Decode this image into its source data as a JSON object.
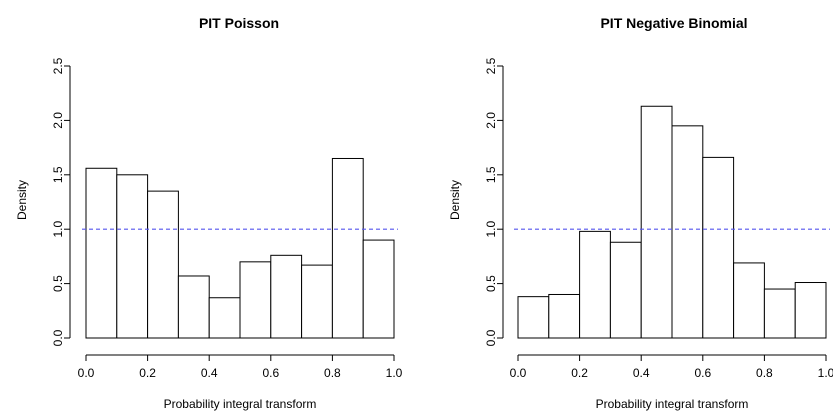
{
  "chart_data": [
    {
      "type": "bar",
      "title": "PIT Poisson",
      "xlabel": "Probability integral transform",
      "ylabel": "Density",
      "bin_edges": [
        0.0,
        0.1,
        0.2,
        0.3,
        0.4,
        0.5,
        0.6,
        0.7,
        0.8,
        0.9,
        1.0
      ],
      "values": [
        1.56,
        1.5,
        1.35,
        0.57,
        0.37,
        0.7,
        0.76,
        0.67,
        1.65,
        0.9
      ],
      "xlim": [
        0,
        1
      ],
      "ylim": [
        0,
        2.5
      ],
      "xticks": [
        "0.0",
        "0.2",
        "0.4",
        "0.6",
        "0.8",
        "1.0"
      ],
      "yticks": [
        "0.0",
        "0.5",
        "1.0",
        "1.5",
        "2.0",
        "2.5"
      ],
      "reference_line": {
        "y": 1.0,
        "style": "dashed",
        "color": "#5555ee"
      },
      "grid": false
    },
    {
      "type": "bar",
      "title": "PIT Negative Binomial",
      "xlabel": "Probability integral transform",
      "ylabel": "Density",
      "bin_edges": [
        0.0,
        0.1,
        0.2,
        0.3,
        0.4,
        0.5,
        0.6,
        0.7,
        0.8,
        0.9,
        1.0
      ],
      "values": [
        0.38,
        0.4,
        0.98,
        0.88,
        2.13,
        1.95,
        1.66,
        0.69,
        0.45,
        0.51
      ],
      "xlim": [
        0,
        1
      ],
      "ylim": [
        0,
        2.5
      ],
      "xticks": [
        "0.0",
        "0.2",
        "0.4",
        "0.6",
        "0.8",
        "1.0"
      ],
      "yticks": [
        "0.0",
        "0.5",
        "1.0",
        "1.5",
        "2.0",
        "2.5"
      ],
      "reference_line": {
        "y": 1.0,
        "style": "dashed",
        "color": "#5555ee"
      },
      "grid": false
    }
  ]
}
